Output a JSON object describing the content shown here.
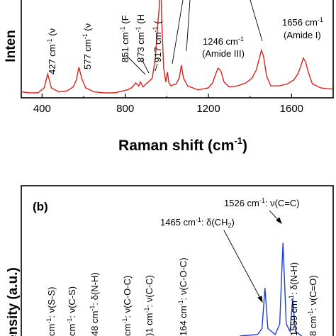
{
  "chart_data": [
    {
      "panel": "a",
      "type": "line",
      "xlabel": "Raman shift (cm",
      "xlabel_sup": "-1",
      "xlabel_end": ")",
      "ylabel": "Inten",
      "xlim": [
        300,
        1800
      ],
      "x_ticks": [
        400,
        800,
        1200,
        1600
      ],
      "x_tick_labels": [
        "400",
        "800",
        "1200",
        "1600"
      ],
      "series": [
        {
          "color": "#e0201b",
          "points": [
            [
              300,
              94
            ],
            [
              340,
              95
            ],
            [
              380,
              95
            ],
            [
              410,
              90
            ],
            [
              427,
              76
            ],
            [
              445,
              90
            ],
            [
              480,
              94
            ],
            [
              520,
              93
            ],
            [
              550,
              89
            ],
            [
              565,
              82
            ],
            [
              577,
              69
            ],
            [
              590,
              80
            ],
            [
              610,
              90
            ],
            [
              650,
              94
            ],
            [
              700,
              95
            ],
            [
              750,
              95
            ],
            [
              790,
              93
            ],
            [
              810,
              92
            ],
            [
              830,
              90
            ],
            [
              851,
              85
            ],
            [
              865,
              88
            ],
            [
              873,
              84
            ],
            [
              885,
              89
            ],
            [
              900,
              86
            ],
            [
              917,
              83
            ],
            [
              930,
              80
            ],
            [
              945,
              60
            ],
            [
              955,
              30
            ],
            [
              963,
              10
            ],
            [
              970,
              -40
            ],
            [
              975,
              20
            ],
            [
              985,
              70
            ],
            [
              995,
              84
            ],
            [
              1003,
              74
            ],
            [
              1010,
              85
            ],
            [
              1020,
              88
            ],
            [
              1030,
              87
            ],
            [
              1045,
              86
            ],
            [
              1060,
              80
            ],
            [
              1070,
              67
            ],
            [
              1080,
              80
            ],
            [
              1100,
              88
            ],
            [
              1150,
              92
            ],
            [
              1200,
              90
            ],
            [
              1220,
              85
            ],
            [
              1235,
              76
            ],
            [
              1246,
              70
            ],
            [
              1260,
              73
            ],
            [
              1275,
              84
            ],
            [
              1300,
              89
            ],
            [
              1340,
              88
            ],
            [
              1380,
              85
            ],
            [
              1410,
              80
            ],
            [
              1430,
              72
            ],
            [
              1445,
              60
            ],
            [
              1455,
              52
            ],
            [
              1465,
              58
            ],
            [
              1480,
              78
            ],
            [
              1500,
              88
            ],
            [
              1540,
              88
            ],
            [
              1580,
              86
            ],
            [
              1610,
              82
            ],
            [
              1630,
              76
            ],
            [
              1645,
              68
            ],
            [
              1656,
              60
            ],
            [
              1668,
              64
            ],
            [
              1680,
              74
            ],
            [
              1700,
              86
            ],
            [
              1740,
              90
            ],
            [
              1780,
              91
            ],
            [
              1800,
              91
            ]
          ]
        }
      ],
      "annotations": [
        {
          "text": "427 cm",
          "sup": "-1",
          "tail": " (ν",
          "x": 427
        },
        {
          "text": "577 cm",
          "sup": "-1",
          "tail": " (ν",
          "x": 577
        },
        {
          "text": "851 cm",
          "sup": "-1",
          "tail": " (F",
          "x": 851
        },
        {
          "text": "873 cm",
          "sup": "-1",
          "tail": " (H",
          "x": 873
        },
        {
          "text": "917 cm",
          "sup": "-1",
          "tail": " (",
          "x": 917
        },
        {
          "text": "1246 cm",
          "sup": "-1",
          "tail": "",
          "x": 1246
        },
        {
          "text": "(Amide III)",
          "sup": "",
          "tail": "",
          "x": 1246
        },
        {
          "text": "1656 cm",
          "sup": "-1",
          "tail": "",
          "x": 1656
        },
        {
          "text": "(Amide I)",
          "sup": "",
          "tail": "",
          "x": 1656
        }
      ]
    },
    {
      "panel": "b",
      "panel_label": "(b)",
      "type": "line",
      "ylabel": "ensity (a.u.)",
      "series": [
        {
          "color": "#1d3fd0",
          "points": [
            [
              1380,
              100
            ],
            [
              1440,
              99
            ],
            [
              1455,
              95
            ],
            [
              1465,
              68
            ],
            [
              1475,
              95
            ],
            [
              1500,
              99
            ],
            [
              1515,
              92
            ],
            [
              1526,
              38
            ],
            [
              1537,
              92
            ],
            [
              1550,
              97
            ],
            [
              1559,
              75
            ],
            [
              1568,
              97
            ],
            [
              1590,
              100
            ]
          ]
        }
      ],
      "annotations": [
        {
          "text": "1526 cm",
          "sup": "-1",
          "tail": ": ν(C=C)"
        },
        {
          "text": "1465 cm",
          "sup": "-1",
          "tail": ": δ(CH",
          "sub": "2",
          "close": ")"
        },
        {
          "text": "cm",
          "sup": "-1",
          "tail": ": ν(S-S)"
        },
        {
          "text": "cm",
          "sup": "-1",
          "tail": ": ν(C-S)"
        },
        {
          "text": "48 cm",
          "sup": "-1",
          "tail": ": δ(N-H)"
        },
        {
          "text": "cm",
          "sup": "-1",
          "tail": ": ν(C-O-C)"
        },
        {
          "text": ")1 cm",
          "sup": "-1",
          "tail": ": ν(C-C)"
        },
        {
          "text": "164 cm",
          "sup": "-1",
          "tail": ": ν(C-O-C)"
        },
        {
          "text": "1559 cm",
          "sup": "-1",
          "tail": ": δ(N-H)"
        },
        {
          "text": "8 cm",
          "sup": "-1",
          "tail": ": ν(C=O)"
        }
      ]
    }
  ]
}
